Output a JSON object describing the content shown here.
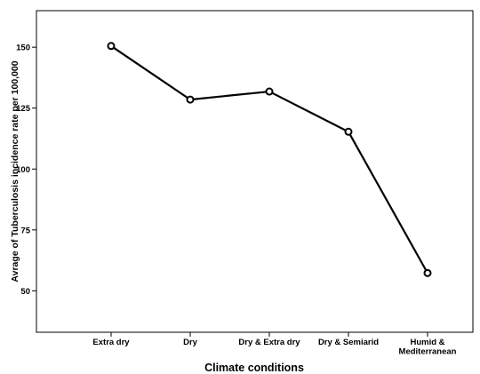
{
  "chart_data": {
    "type": "line",
    "categories": [
      [
        "Extra dry"
      ],
      [
        "Dry"
      ],
      [
        "Dry & Extra dry"
      ],
      [
        "Dry & Semiarid"
      ],
      [
        "Humid &",
        "Mediterranean"
      ]
    ],
    "values": [
      150.5,
      128.5,
      131.8,
      115.3,
      57.3
    ],
    "xlabel": "Climate conditions",
    "ylabel": "Avrage of Tuberculosis incidence rate per 100,000",
    "yticks": [
      50,
      75,
      100,
      125,
      150
    ],
    "ylim": [
      33,
      165
    ],
    "grid": false,
    "line_color": "#000000",
    "marker": "open-circle"
  }
}
